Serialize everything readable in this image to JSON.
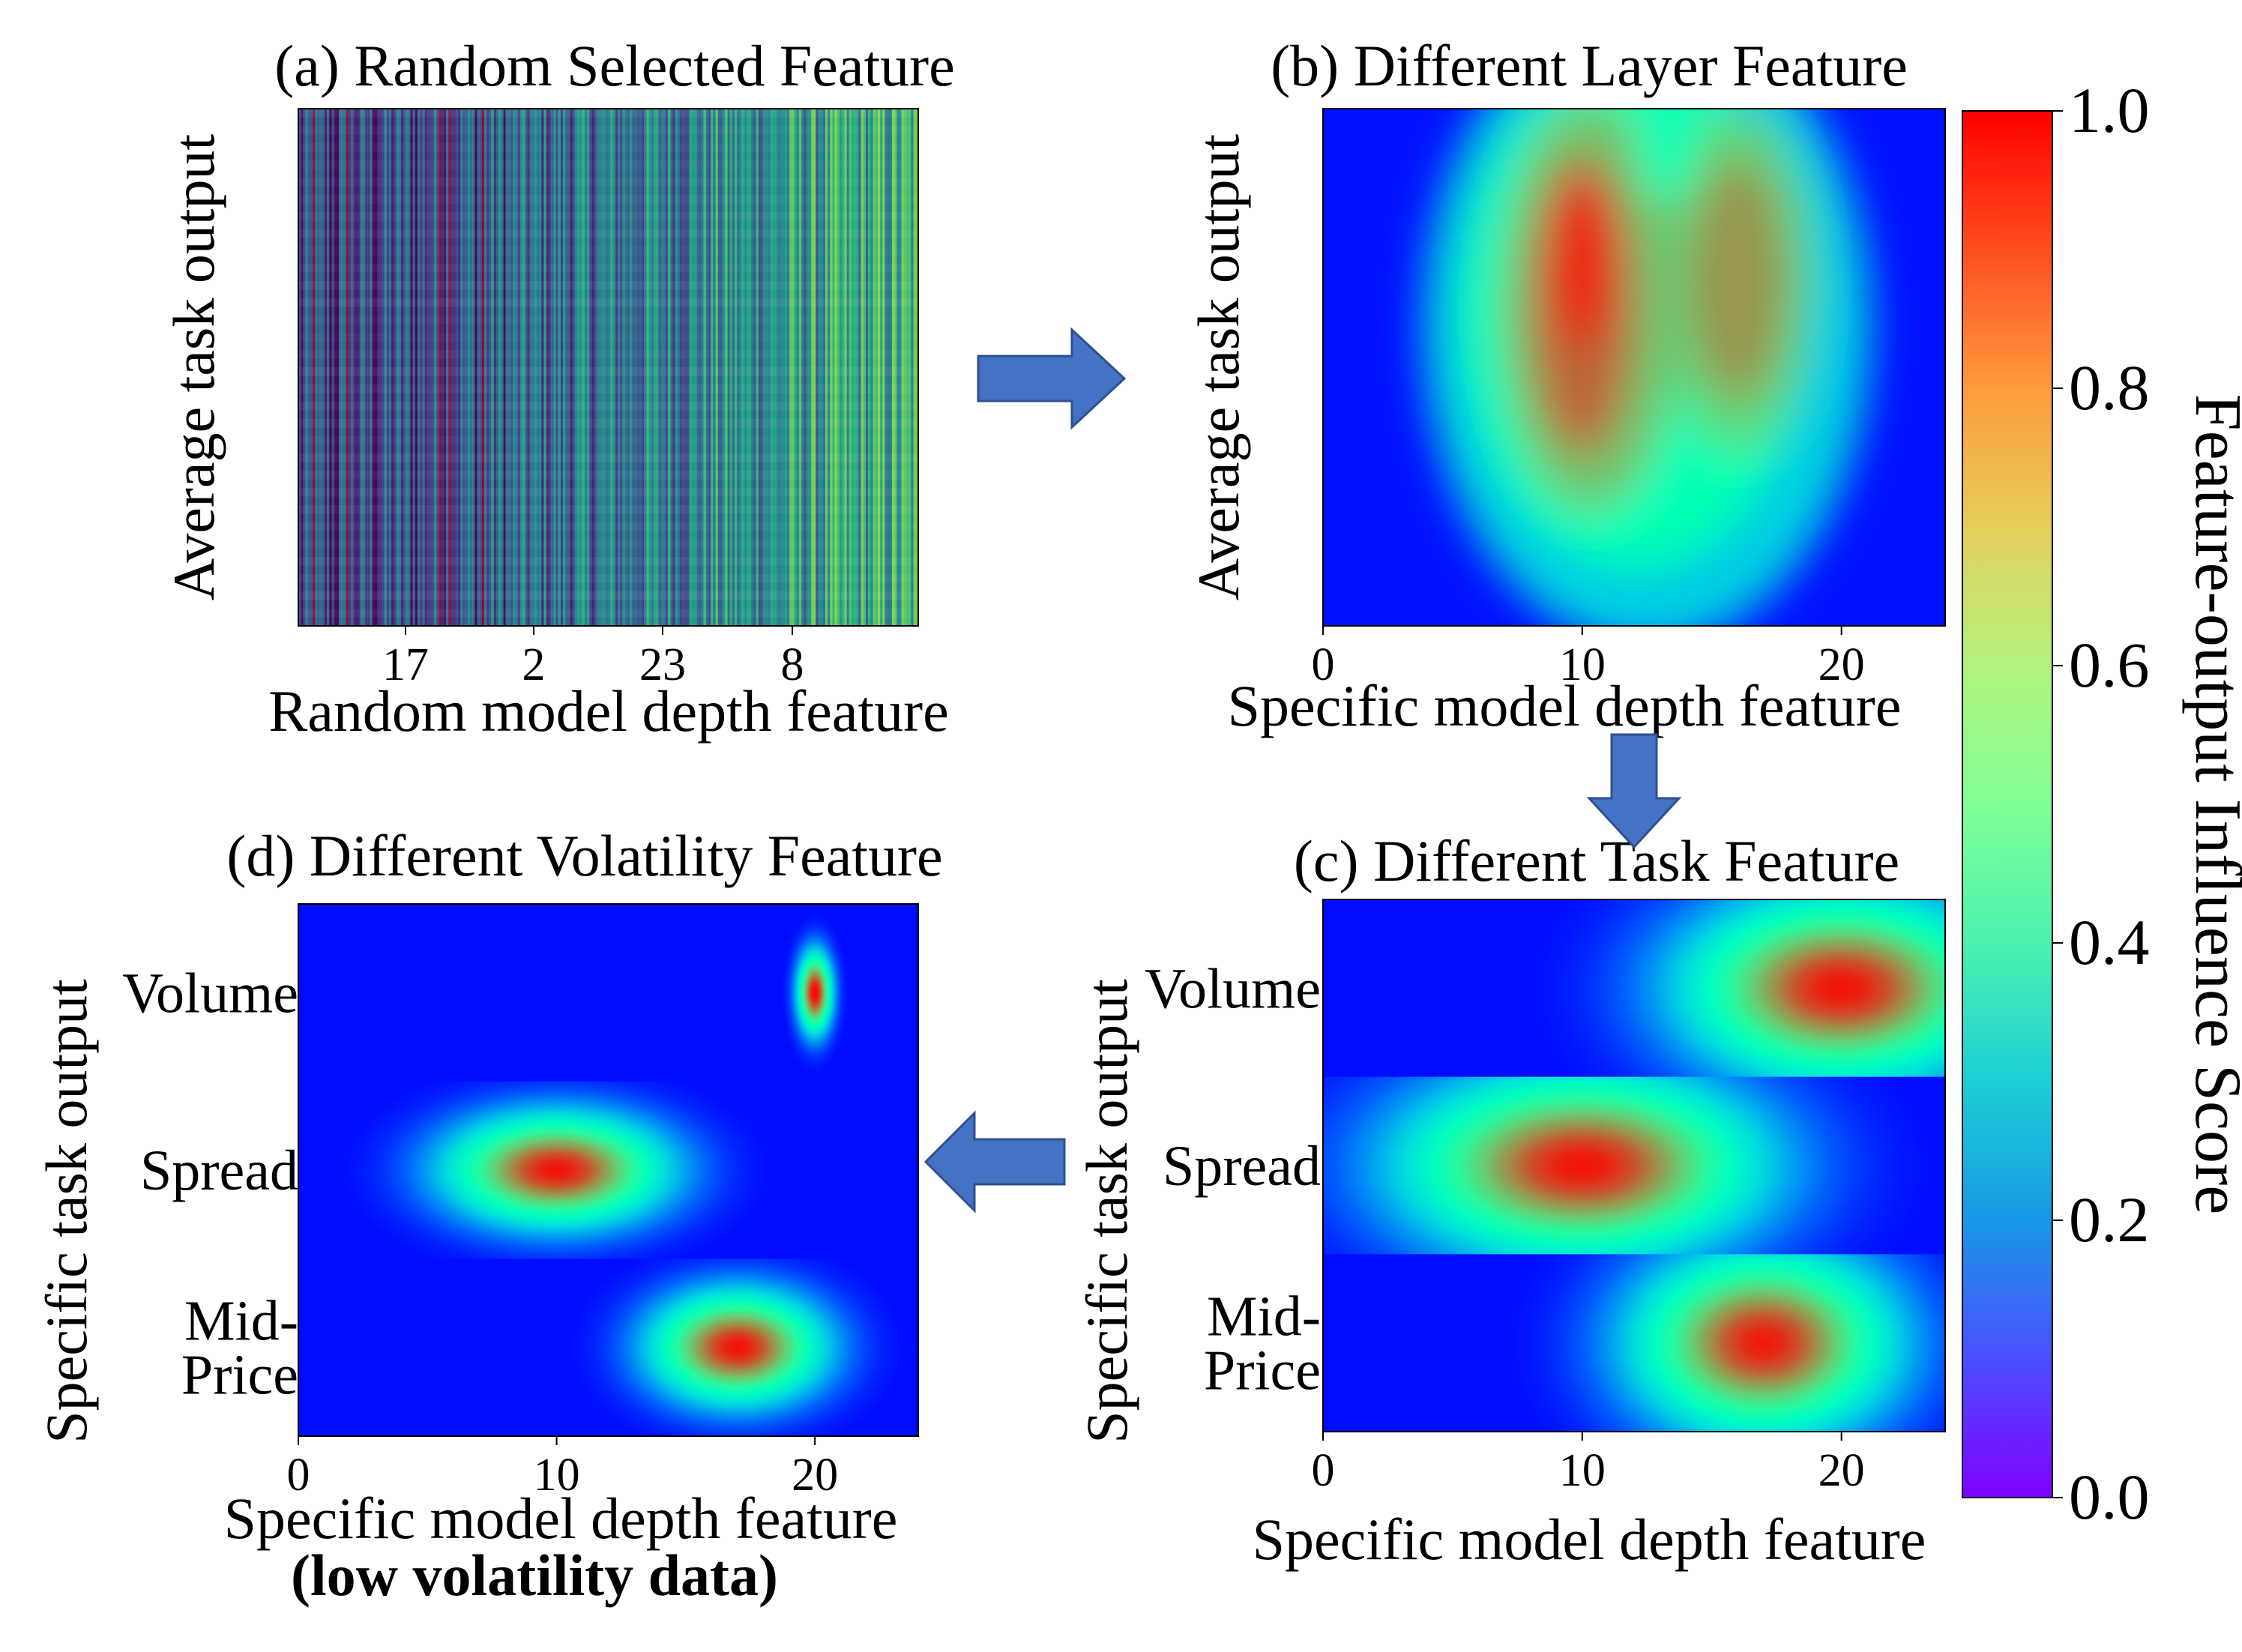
{
  "colorbar": {
    "label": "Feature-output Influence Score",
    "ticks": [
      "0.0",
      "0.2",
      "0.4",
      "0.6",
      "0.8",
      "1.0"
    ],
    "tick_values": [
      0.0,
      0.2,
      0.4,
      0.6,
      0.8,
      1.0
    ],
    "range": [
      0,
      1
    ],
    "colormap": "rainbow",
    "colormap_stops": [
      "#8000ff",
      "#4b4ffe",
      "#1898e6",
      "#1ccfd4",
      "#4cf2b0",
      "#80ff96",
      "#b2f27c",
      "#e6cf5c",
      "#ff9a3e",
      "#ff4e1f",
      "#ff0000"
    ]
  },
  "arrow_color": "#4472c4",
  "chart_data": [
    {
      "id": "a",
      "type": "heatmap",
      "title": "(a) Random Selected Feature",
      "xlabel": "Random model depth feature",
      "ylabel": "Average task output",
      "xtick_labels": [
        "17",
        "2",
        "23",
        "8"
      ],
      "columns": 24,
      "colormap": "viridis",
      "description": "randomly ordered layer stripes with fine noise"
    },
    {
      "id": "b",
      "type": "heatmap",
      "title": "(b) Different Layer Feature",
      "xlabel": "Specific model depth feature",
      "ylabel": "Average task output",
      "xlim": [
        0,
        24
      ],
      "xticks": [
        "0",
        "10",
        "20"
      ],
      "xtick_values": [
        0,
        10,
        20
      ],
      "peaks": [
        {
          "x": 10,
          "y_frac": 0.38,
          "value": 0.97
        },
        {
          "x": 16,
          "y_frac": 0.33,
          "value": 0.8
        }
      ]
    },
    {
      "id": "c",
      "type": "heatmap",
      "title": "(c) Different Task Feature",
      "xlabel": "Specific model depth feature",
      "ylabel": "Specific task output",
      "xlim": [
        0,
        24
      ],
      "xticks": [
        "0",
        "10",
        "20"
      ],
      "xtick_values": [
        0,
        10,
        20
      ],
      "rows": [
        {
          "label": "Volume",
          "peak_depth": 20,
          "spread": 4.6,
          "peak": 0.98
        },
        {
          "label": "Spread",
          "peak_depth": 10,
          "spread": 5.2,
          "peak": 0.98
        },
        {
          "label": [
            "Mid-",
            "Price"
          ],
          "peak_depth": 17,
          "spread": 3.8,
          "peak": 0.97
        }
      ]
    },
    {
      "id": "d",
      "type": "heatmap",
      "title": "(d) Different Volatility Feature",
      "xlabel": "Specific model depth feature",
      "xlabel2": "(low volatility data)",
      "ylabel": "Specific task output",
      "xlim": [
        0,
        24
      ],
      "xticks": [
        "0",
        "10",
        "20"
      ],
      "xtick_values": [
        0,
        10,
        20
      ],
      "rows": [
        {
          "label": "Volume",
          "peak_depth": 20,
          "spread": 0.5,
          "peak": 1.0
        },
        {
          "label": "Spread",
          "peak_depth": 10,
          "spread": 3.2,
          "peak": 0.98
        },
        {
          "label": [
            "Mid-",
            "Price"
          ],
          "peak_depth": 17,
          "spread": 2.5,
          "peak": 0.98
        }
      ]
    }
  ]
}
